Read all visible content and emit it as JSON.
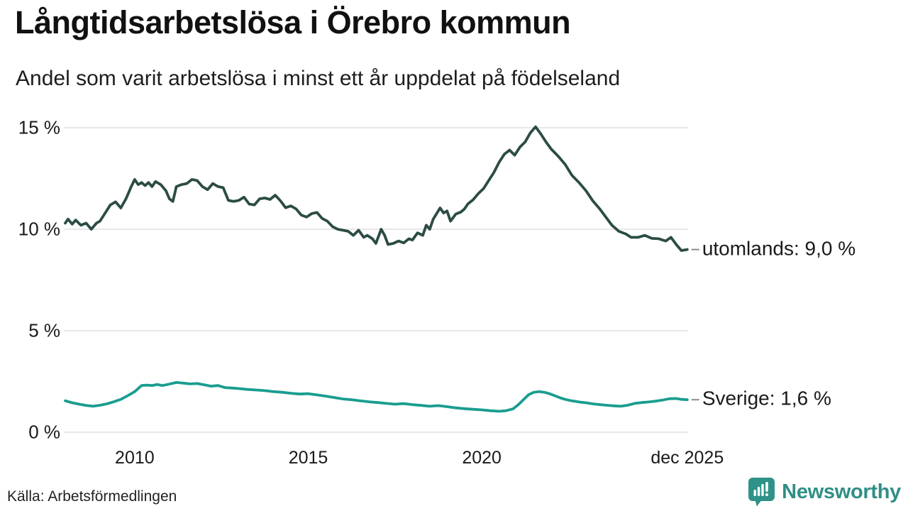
{
  "chart_data": {
    "type": "line",
    "title": "Långtidsarbetslösa i Örebro kommun",
    "subtitle": "Andel som varit arbetslösa i minst ett år uppdelat på födelseland",
    "source": "Källa: Arbetsförmedlingen",
    "x_unit": "decimal_year",
    "xlim": [
      2008,
      2026
    ],
    "ylim": [
      0,
      15.2
    ],
    "grid": "horizontal",
    "legend_position": "end-of-line-labels",
    "y_ticks": [
      {
        "value": 15,
        "label": "15 %"
      },
      {
        "value": 10,
        "label": "10 %"
      },
      {
        "value": 5,
        "label": "5 %"
      },
      {
        "value": 0,
        "label": "0 %"
      }
    ],
    "x_ticks": [
      {
        "value": 2010,
        "label": "2010"
      },
      {
        "value": 2015,
        "label": "2015"
      },
      {
        "value": 2020,
        "label": "2020"
      },
      {
        "value": 2025.92,
        "label": "dec 2025"
      }
    ],
    "series": [
      {
        "name": "utomlands",
        "end_label": "utomlands: 9,0 %",
        "last_value_display": "9,0 %",
        "color": "#2b4c44",
        "points": [
          [
            2008.0,
            10.3
          ],
          [
            2008.08,
            10.5
          ],
          [
            2008.2,
            10.25
          ],
          [
            2008.3,
            10.45
          ],
          [
            2008.45,
            10.2
          ],
          [
            2008.6,
            10.3
          ],
          [
            2008.75,
            10.0
          ],
          [
            2008.9,
            10.3
          ],
          [
            2009.0,
            10.4
          ],
          [
            2009.15,
            10.8
          ],
          [
            2009.3,
            11.2
          ],
          [
            2009.45,
            11.35
          ],
          [
            2009.6,
            11.05
          ],
          [
            2009.75,
            11.5
          ],
          [
            2009.9,
            12.1
          ],
          [
            2010.0,
            12.45
          ],
          [
            2010.1,
            12.2
          ],
          [
            2010.2,
            12.3
          ],
          [
            2010.3,
            12.15
          ],
          [
            2010.4,
            12.3
          ],
          [
            2010.5,
            12.1
          ],
          [
            2010.6,
            12.35
          ],
          [
            2010.75,
            12.2
          ],
          [
            2010.9,
            11.9
          ],
          [
            2011.0,
            11.5
          ],
          [
            2011.1,
            11.37
          ],
          [
            2011.2,
            12.1
          ],
          [
            2011.35,
            12.2
          ],
          [
            2011.5,
            12.25
          ],
          [
            2011.65,
            12.45
          ],
          [
            2011.8,
            12.4
          ],
          [
            2011.95,
            12.1
          ],
          [
            2012.1,
            11.95
          ],
          [
            2012.25,
            12.25
          ],
          [
            2012.4,
            12.1
          ],
          [
            2012.55,
            12.05
          ],
          [
            2012.7,
            11.42
          ],
          [
            2012.85,
            11.37
          ],
          [
            2013.0,
            11.42
          ],
          [
            2013.15,
            11.58
          ],
          [
            2013.3,
            11.24
          ],
          [
            2013.45,
            11.2
          ],
          [
            2013.6,
            11.5
          ],
          [
            2013.75,
            11.54
          ],
          [
            2013.9,
            11.47
          ],
          [
            2014.05,
            11.68
          ],
          [
            2014.2,
            11.4
          ],
          [
            2014.35,
            11.06
          ],
          [
            2014.5,
            11.15
          ],
          [
            2014.65,
            11.0
          ],
          [
            2014.8,
            10.7
          ],
          [
            2014.95,
            10.6
          ],
          [
            2015.1,
            10.77
          ],
          [
            2015.25,
            10.83
          ],
          [
            2015.4,
            10.53
          ],
          [
            2015.55,
            10.4
          ],
          [
            2015.7,
            10.13
          ],
          [
            2015.85,
            10.0
          ],
          [
            2016.0,
            9.95
          ],
          [
            2016.15,
            9.9
          ],
          [
            2016.3,
            9.7
          ],
          [
            2016.45,
            9.95
          ],
          [
            2016.6,
            9.6
          ],
          [
            2016.7,
            9.7
          ],
          [
            2016.85,
            9.53
          ],
          [
            2016.95,
            9.3
          ],
          [
            2017.1,
            10.0
          ],
          [
            2017.2,
            9.7
          ],
          [
            2017.3,
            9.25
          ],
          [
            2017.45,
            9.3
          ],
          [
            2017.6,
            9.42
          ],
          [
            2017.75,
            9.33
          ],
          [
            2017.9,
            9.53
          ],
          [
            2018.0,
            9.47
          ],
          [
            2018.15,
            9.82
          ],
          [
            2018.3,
            9.7
          ],
          [
            2018.4,
            10.2
          ],
          [
            2018.5,
            10.0
          ],
          [
            2018.6,
            10.5
          ],
          [
            2018.8,
            11.05
          ],
          [
            2018.9,
            10.8
          ],
          [
            2019.0,
            10.9
          ],
          [
            2019.1,
            10.4
          ],
          [
            2019.25,
            10.75
          ],
          [
            2019.4,
            10.85
          ],
          [
            2019.5,
            11.0
          ],
          [
            2019.6,
            11.25
          ],
          [
            2019.75,
            11.45
          ],
          [
            2019.9,
            11.76
          ],
          [
            2020.05,
            12.0
          ],
          [
            2020.2,
            12.4
          ],
          [
            2020.35,
            12.8
          ],
          [
            2020.5,
            13.3
          ],
          [
            2020.65,
            13.7
          ],
          [
            2020.8,
            13.9
          ],
          [
            2020.95,
            13.65
          ],
          [
            2021.1,
            14.05
          ],
          [
            2021.25,
            14.3
          ],
          [
            2021.4,
            14.75
          ],
          [
            2021.55,
            15.05
          ],
          [
            2021.7,
            14.7
          ],
          [
            2021.85,
            14.3
          ],
          [
            2022.0,
            13.95
          ],
          [
            2022.2,
            13.6
          ],
          [
            2022.4,
            13.2
          ],
          [
            2022.6,
            12.65
          ],
          [
            2022.8,
            12.3
          ],
          [
            2023.0,
            11.9
          ],
          [
            2023.2,
            11.4
          ],
          [
            2023.4,
            11.0
          ],
          [
            2023.55,
            10.65
          ],
          [
            2023.75,
            10.2
          ],
          [
            2023.95,
            9.9
          ],
          [
            2024.15,
            9.77
          ],
          [
            2024.3,
            9.6
          ],
          [
            2024.5,
            9.6
          ],
          [
            2024.7,
            9.7
          ],
          [
            2024.9,
            9.55
          ],
          [
            2025.1,
            9.53
          ],
          [
            2025.3,
            9.42
          ],
          [
            2025.45,
            9.6
          ],
          [
            2025.6,
            9.25
          ],
          [
            2025.75,
            8.95
          ],
          [
            2025.92,
            9.0
          ]
        ]
      },
      {
        "name": "Sverige",
        "end_label": "Sverige: 1,6 %",
        "last_value_display": "1,6 %",
        "color": "#199d8f",
        "points": [
          [
            2008.0,
            1.55
          ],
          [
            2008.2,
            1.45
          ],
          [
            2008.4,
            1.38
          ],
          [
            2008.6,
            1.32
          ],
          [
            2008.8,
            1.28
          ],
          [
            2009.0,
            1.33
          ],
          [
            2009.2,
            1.4
          ],
          [
            2009.4,
            1.5
          ],
          [
            2009.6,
            1.62
          ],
          [
            2009.8,
            1.8
          ],
          [
            2010.0,
            2.0
          ],
          [
            2010.2,
            2.3
          ],
          [
            2010.35,
            2.32
          ],
          [
            2010.5,
            2.3
          ],
          [
            2010.65,
            2.35
          ],
          [
            2010.8,
            2.3
          ],
          [
            2011.0,
            2.37
          ],
          [
            2011.2,
            2.45
          ],
          [
            2011.4,
            2.42
          ],
          [
            2011.6,
            2.38
          ],
          [
            2011.8,
            2.4
          ],
          [
            2012.0,
            2.34
          ],
          [
            2012.2,
            2.27
          ],
          [
            2012.4,
            2.3
          ],
          [
            2012.6,
            2.2
          ],
          [
            2012.8,
            2.18
          ],
          [
            2013.0,
            2.15
          ],
          [
            2013.25,
            2.11
          ],
          [
            2013.5,
            2.08
          ],
          [
            2013.75,
            2.05
          ],
          [
            2014.0,
            2.0
          ],
          [
            2014.25,
            1.97
          ],
          [
            2014.5,
            1.92
          ],
          [
            2014.75,
            1.88
          ],
          [
            2015.0,
            1.9
          ],
          [
            2015.25,
            1.84
          ],
          [
            2015.5,
            1.78
          ],
          [
            2015.75,
            1.71
          ],
          [
            2016.0,
            1.64
          ],
          [
            2016.25,
            1.6
          ],
          [
            2016.5,
            1.55
          ],
          [
            2016.75,
            1.5
          ],
          [
            2017.0,
            1.46
          ],
          [
            2017.25,
            1.42
          ],
          [
            2017.5,
            1.38
          ],
          [
            2017.75,
            1.41
          ],
          [
            2018.0,
            1.36
          ],
          [
            2018.25,
            1.32
          ],
          [
            2018.5,
            1.28
          ],
          [
            2018.75,
            1.31
          ],
          [
            2019.0,
            1.26
          ],
          [
            2019.25,
            1.2
          ],
          [
            2019.5,
            1.16
          ],
          [
            2019.75,
            1.13
          ],
          [
            2020.0,
            1.1
          ],
          [
            2020.25,
            1.06
          ],
          [
            2020.5,
            1.03
          ],
          [
            2020.7,
            1.06
          ],
          [
            2020.9,
            1.15
          ],
          [
            2021.05,
            1.35
          ],
          [
            2021.2,
            1.6
          ],
          [
            2021.35,
            1.85
          ],
          [
            2021.5,
            1.97
          ],
          [
            2021.65,
            2.0
          ],
          [
            2021.8,
            1.97
          ],
          [
            2021.95,
            1.9
          ],
          [
            2022.1,
            1.8
          ],
          [
            2022.25,
            1.7
          ],
          [
            2022.4,
            1.62
          ],
          [
            2022.55,
            1.56
          ],
          [
            2022.7,
            1.52
          ],
          [
            2022.85,
            1.48
          ],
          [
            2023.0,
            1.45
          ],
          [
            2023.2,
            1.4
          ],
          [
            2023.4,
            1.36
          ],
          [
            2023.6,
            1.33
          ],
          [
            2023.8,
            1.3
          ],
          [
            2024.0,
            1.28
          ],
          [
            2024.2,
            1.33
          ],
          [
            2024.4,
            1.42
          ],
          [
            2024.6,
            1.46
          ],
          [
            2024.8,
            1.49
          ],
          [
            2025.0,
            1.53
          ],
          [
            2025.2,
            1.58
          ],
          [
            2025.4,
            1.65
          ],
          [
            2025.6,
            1.66
          ],
          [
            2025.75,
            1.62
          ],
          [
            2025.92,
            1.6
          ]
        ]
      }
    ]
  },
  "footer": {
    "brand": "Newsworthy",
    "brand_icon": "bar-chart-speech-bubble"
  },
  "colors": {
    "grid": "#e8e8eb",
    "text": "#1a1a1a",
    "label_dash": "#8c8c8c",
    "brand": "#2f8f86",
    "brand_bubble": "#2f9288",
    "series_utomlands": "#2b4c44",
    "series_sverige": "#199d8f"
  }
}
